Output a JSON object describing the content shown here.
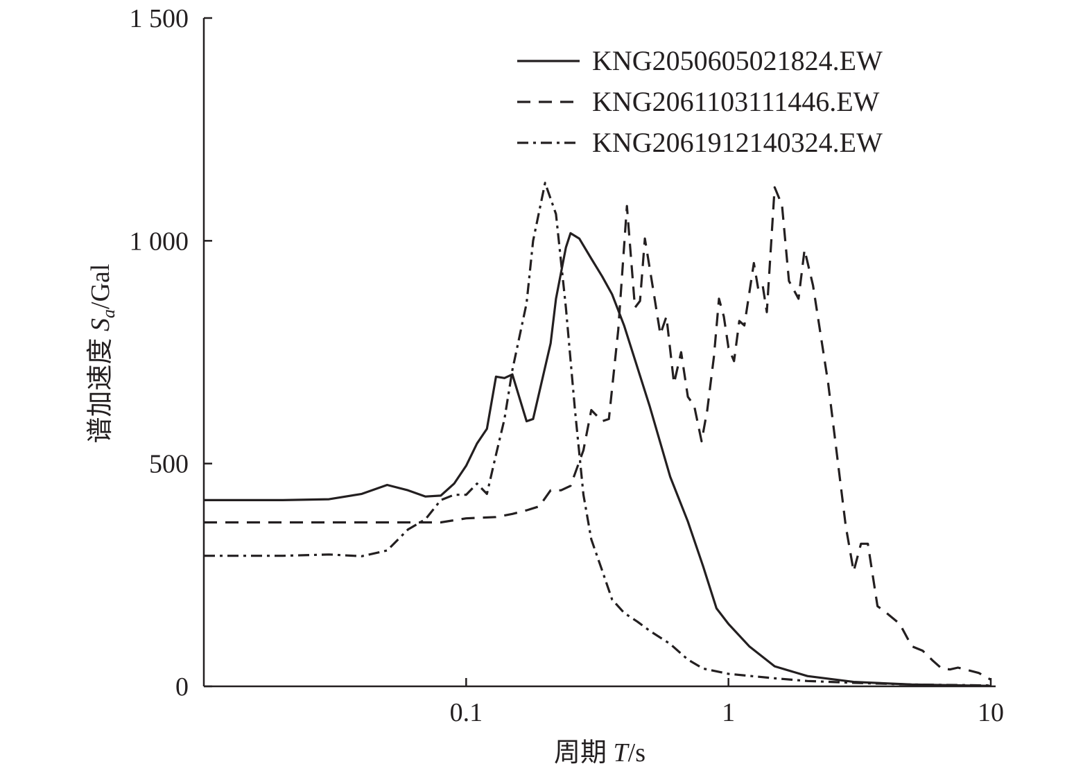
{
  "chart_data": {
    "type": "line",
    "xlabel_prefix": "周期 ",
    "xlabel_var": "T",
    "xlabel_suffix": "/s",
    "ylabel_prefix": "谱加速度 ",
    "ylabel_var": "S",
    "ylabel_sub": "a",
    "ylabel_suffix": "/Gal",
    "x_scale": "log",
    "xlim": [
      0.01,
      10
    ],
    "ylim": [
      0,
      1500
    ],
    "x_ticks": [
      {
        "value": 0.1,
        "label": "0.1"
      },
      {
        "value": 1,
        "label": "1"
      },
      {
        "value": 10,
        "label": "10"
      }
    ],
    "y_ticks": [
      {
        "value": 0,
        "label": "0"
      },
      {
        "value": 500,
        "label": "500"
      },
      {
        "value": 1000,
        "label": "1 000"
      },
      {
        "value": 1500,
        "label": "1 500"
      }
    ],
    "grid": false,
    "legend_position": "top-right",
    "series": [
      {
        "name": "KNG2050605021824.EW",
        "style": "solid",
        "points": [
          [
            0.01,
            418
          ],
          [
            0.02,
            418
          ],
          [
            0.03,
            420
          ],
          [
            0.04,
            432
          ],
          [
            0.05,
            452
          ],
          [
            0.06,
            440
          ],
          [
            0.07,
            426
          ],
          [
            0.08,
            428
          ],
          [
            0.09,
            455
          ],
          [
            0.1,
            495
          ],
          [
            0.11,
            545
          ],
          [
            0.12,
            578
          ],
          [
            0.13,
            695
          ],
          [
            0.14,
            692
          ],
          [
            0.15,
            700
          ],
          [
            0.17,
            595
          ],
          [
            0.18,
            600
          ],
          [
            0.21,
            770
          ],
          [
            0.22,
            870
          ],
          [
            0.24,
            985
          ],
          [
            0.25,
            1017
          ],
          [
            0.27,
            1005
          ],
          [
            0.3,
            960
          ],
          [
            0.33,
            920
          ],
          [
            0.36,
            880
          ],
          [
            0.4,
            810
          ],
          [
            0.5,
            630
          ],
          [
            0.6,
            470
          ],
          [
            0.7,
            370
          ],
          [
            0.8,
            270
          ],
          [
            0.9,
            175
          ],
          [
            1.0,
            140
          ],
          [
            1.2,
            90
          ],
          [
            1.5,
            45
          ],
          [
            2,
            23
          ],
          [
            3,
            10
          ],
          [
            5,
            4
          ],
          [
            10,
            1
          ]
        ]
      },
      {
        "name": "KNG2061103111446.EW",
        "style": "dashed",
        "points": [
          [
            0.01,
            368
          ],
          [
            0.05,
            368
          ],
          [
            0.08,
            368
          ],
          [
            0.1,
            377
          ],
          [
            0.13,
            380
          ],
          [
            0.15,
            387
          ],
          [
            0.17,
            395
          ],
          [
            0.19,
            404
          ],
          [
            0.21,
            440
          ],
          [
            0.23,
            440
          ],
          [
            0.25,
            450
          ],
          [
            0.28,
            530
          ],
          [
            0.3,
            620
          ],
          [
            0.33,
            595
          ],
          [
            0.35,
            600
          ],
          [
            0.38,
            800
          ],
          [
            0.41,
            1078
          ],
          [
            0.44,
            850
          ],
          [
            0.46,
            865
          ],
          [
            0.48,
            1005
          ],
          [
            0.52,
            880
          ],
          [
            0.55,
            790
          ],
          [
            0.58,
            830
          ],
          [
            0.62,
            680
          ],
          [
            0.66,
            750
          ],
          [
            0.7,
            650
          ],
          [
            0.74,
            630
          ],
          [
            0.79,
            550
          ],
          [
            0.83,
            620
          ],
          [
            0.88,
            740
          ],
          [
            0.92,
            870
          ],
          [
            0.96,
            830
          ],
          [
            1.0,
            760
          ],
          [
            1.05,
            730
          ],
          [
            1.1,
            820
          ],
          [
            1.15,
            810
          ],
          [
            1.25,
            950
          ],
          [
            1.3,
            890
          ],
          [
            1.35,
            900
          ],
          [
            1.4,
            840
          ],
          [
            1.5,
            1120
          ],
          [
            1.6,
            1080
          ],
          [
            1.7,
            910
          ],
          [
            1.85,
            870
          ],
          [
            1.95,
            980
          ],
          [
            2.1,
            900
          ],
          [
            2.4,
            680
          ],
          [
            2.8,
            360
          ],
          [
            3.0,
            258
          ],
          [
            3.2,
            320
          ],
          [
            3.4,
            320
          ],
          [
            3.7,
            180
          ],
          [
            4.0,
            165
          ],
          [
            4.5,
            140
          ],
          [
            5.0,
            90
          ],
          [
            5.5,
            80
          ],
          [
            6.0,
            58
          ],
          [
            6.5,
            40
          ],
          [
            7.0,
            38
          ],
          [
            7.5,
            42
          ],
          [
            8.0,
            38
          ],
          [
            9.0,
            30
          ],
          [
            10.0,
            15
          ]
        ]
      },
      {
        "name": "KNG2061912140324.EW",
        "style": "dashdot",
        "points": [
          [
            0.01,
            293
          ],
          [
            0.02,
            293
          ],
          [
            0.03,
            296
          ],
          [
            0.04,
            292
          ],
          [
            0.05,
            305
          ],
          [
            0.06,
            352
          ],
          [
            0.07,
            375
          ],
          [
            0.08,
            418
          ],
          [
            0.09,
            430
          ],
          [
            0.1,
            430
          ],
          [
            0.11,
            455
          ],
          [
            0.12,
            432
          ],
          [
            0.13,
            520
          ],
          [
            0.14,
            600
          ],
          [
            0.15,
            710
          ],
          [
            0.17,
            860
          ],
          [
            0.18,
            1000
          ],
          [
            0.2,
            1130
          ],
          [
            0.22,
            1060
          ],
          [
            0.24,
            850
          ],
          [
            0.26,
            620
          ],
          [
            0.28,
            430
          ],
          [
            0.3,
            330
          ],
          [
            0.33,
            260
          ],
          [
            0.36,
            195
          ],
          [
            0.4,
            165
          ],
          [
            0.45,
            145
          ],
          [
            0.5,
            125
          ],
          [
            0.6,
            95
          ],
          [
            0.7,
            60
          ],
          [
            0.8,
            40
          ],
          [
            1.0,
            28
          ],
          [
            1.5,
            18
          ],
          [
            2,
            12
          ],
          [
            3,
            8
          ],
          [
            5,
            4
          ],
          [
            10,
            2
          ]
        ]
      }
    ]
  }
}
